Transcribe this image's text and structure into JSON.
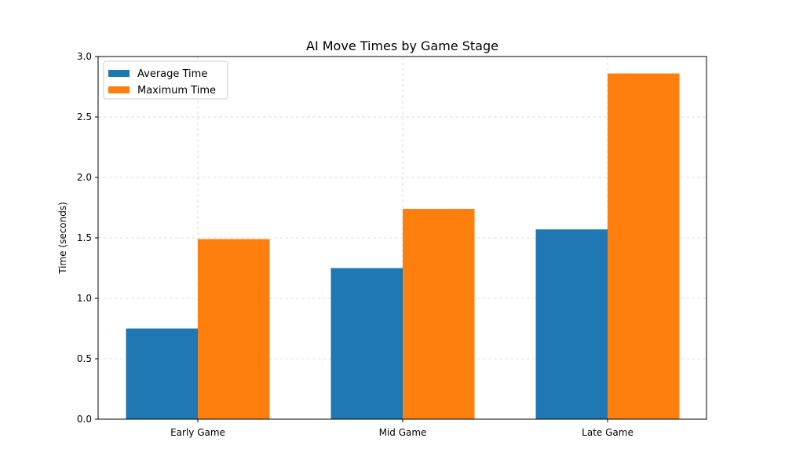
{
  "chart_data": {
    "type": "bar",
    "title": "AI Move Times by Game Stage",
    "xlabel": "",
    "ylabel": "Time (seconds)",
    "categories": [
      "Early Game",
      "Mid Game",
      "Late Game"
    ],
    "series": [
      {
        "name": "Average Time",
        "values": [
          0.75,
          1.25,
          1.57
        ],
        "color": "#1f77b4"
      },
      {
        "name": "Maximum Time",
        "values": [
          1.49,
          1.74,
          2.86
        ],
        "color": "#ff7f0e"
      }
    ],
    "ylim": [
      0,
      3.0
    ],
    "yticks": [
      0.0,
      0.5,
      1.0,
      1.5,
      2.0,
      2.5,
      3.0
    ],
    "ytick_labels": [
      "0.0",
      "0.5",
      "1.0",
      "1.5",
      "2.0",
      "2.5",
      "3.0"
    ],
    "grid": true,
    "legend_position": "top-left"
  }
}
